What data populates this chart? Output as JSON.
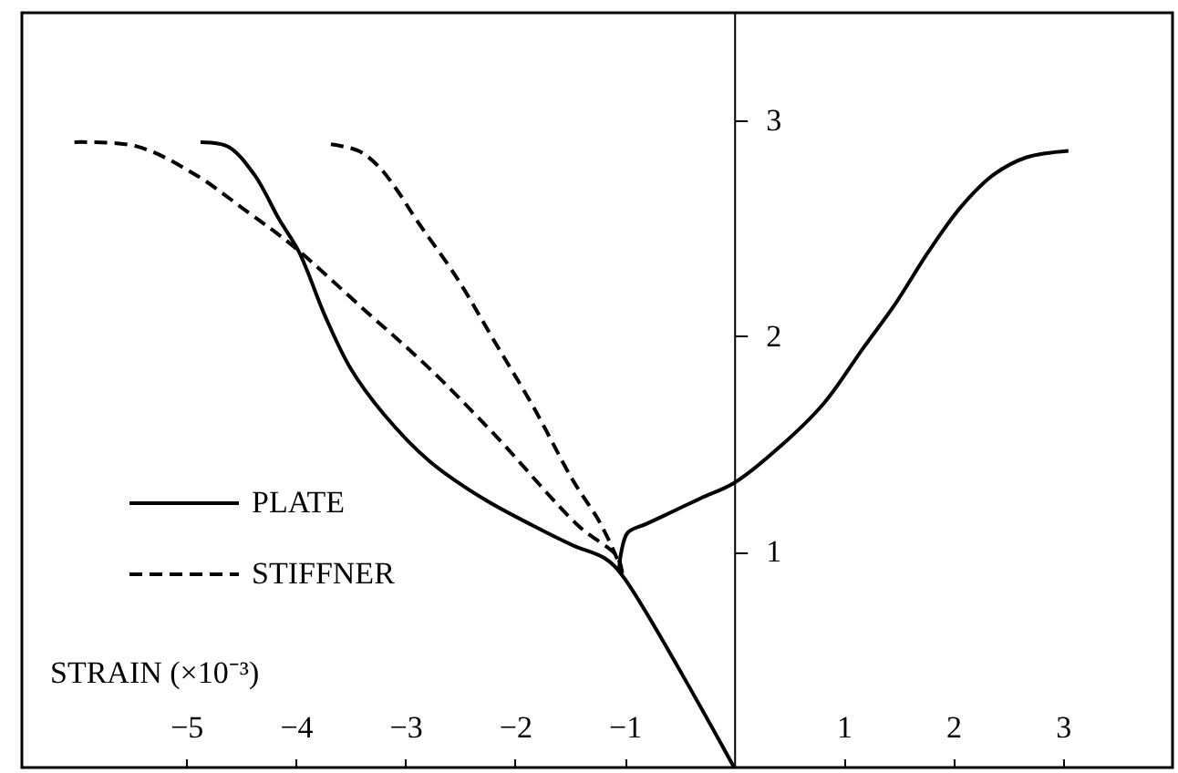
{
  "chart_data": {
    "type": "line",
    "xlabel": "STRAIN (×10⁻³)",
    "xlim": [
      -6.5,
      4.0
    ],
    "xticks": [
      -5,
      -4,
      -3,
      -2,
      -1,
      1,
      2,
      3
    ],
    "ylim": [
      0,
      3.5
    ],
    "yticks": [
      1,
      2,
      3
    ],
    "legend": "left",
    "series": [
      {
        "name": "PLATE",
        "color": "#000000",
        "line_style": "solid",
        "x": [
          -4.87,
          -4.62,
          -4.38,
          -4.15,
          -3.97,
          -3.73,
          -3.5,
          -3.2,
          -2.78,
          -2.3,
          -1.83,
          -1.47,
          -1.18,
          -1.02,
          0,
          null,
          -1.05,
          -1.03,
          -0.97,
          -0.8,
          -0.55,
          -0.3,
          0,
          0.4,
          0.82,
          1.17,
          1.47,
          1.77,
          2.07,
          2.37,
          2.67,
          3.05
        ],
        "values": [
          2.9,
          2.88,
          2.75,
          2.54,
          2.39,
          2.09,
          1.85,
          1.64,
          1.42,
          1.25,
          1.12,
          1.03,
          0.97,
          0.89,
          0,
          null,
          0.92,
          1.0,
          1.09,
          1.13,
          1.19,
          1.25,
          1.32,
          1.48,
          1.69,
          1.94,
          2.15,
          2.39,
          2.6,
          2.75,
          2.83,
          2.86
        ]
      },
      {
        "name": "STIFFNER",
        "color": "#000000",
        "line_style": "dashed",
        "x": [
          -6.02,
          -5.45,
          -4.92,
          -4.45,
          -4.03,
          -3.37,
          -2.78,
          -2.18,
          -1.42,
          -1.07,
          -1.02,
          null,
          -3.68,
          -3.43,
          -3.25,
          -3.08,
          -2.9,
          -2.53,
          -2.18,
          -1.83,
          -1.47,
          -1.23,
          -1.07,
          -1.02
        ],
        "values": [
          2.9,
          2.88,
          2.75,
          2.58,
          2.42,
          2.12,
          1.85,
          1.54,
          1.12,
          0.98,
          0.9,
          null,
          2.89,
          2.86,
          2.79,
          2.68,
          2.54,
          2.27,
          1.97,
          1.67,
          1.33,
          1.14,
          0.97,
          0.9
        ]
      }
    ]
  }
}
